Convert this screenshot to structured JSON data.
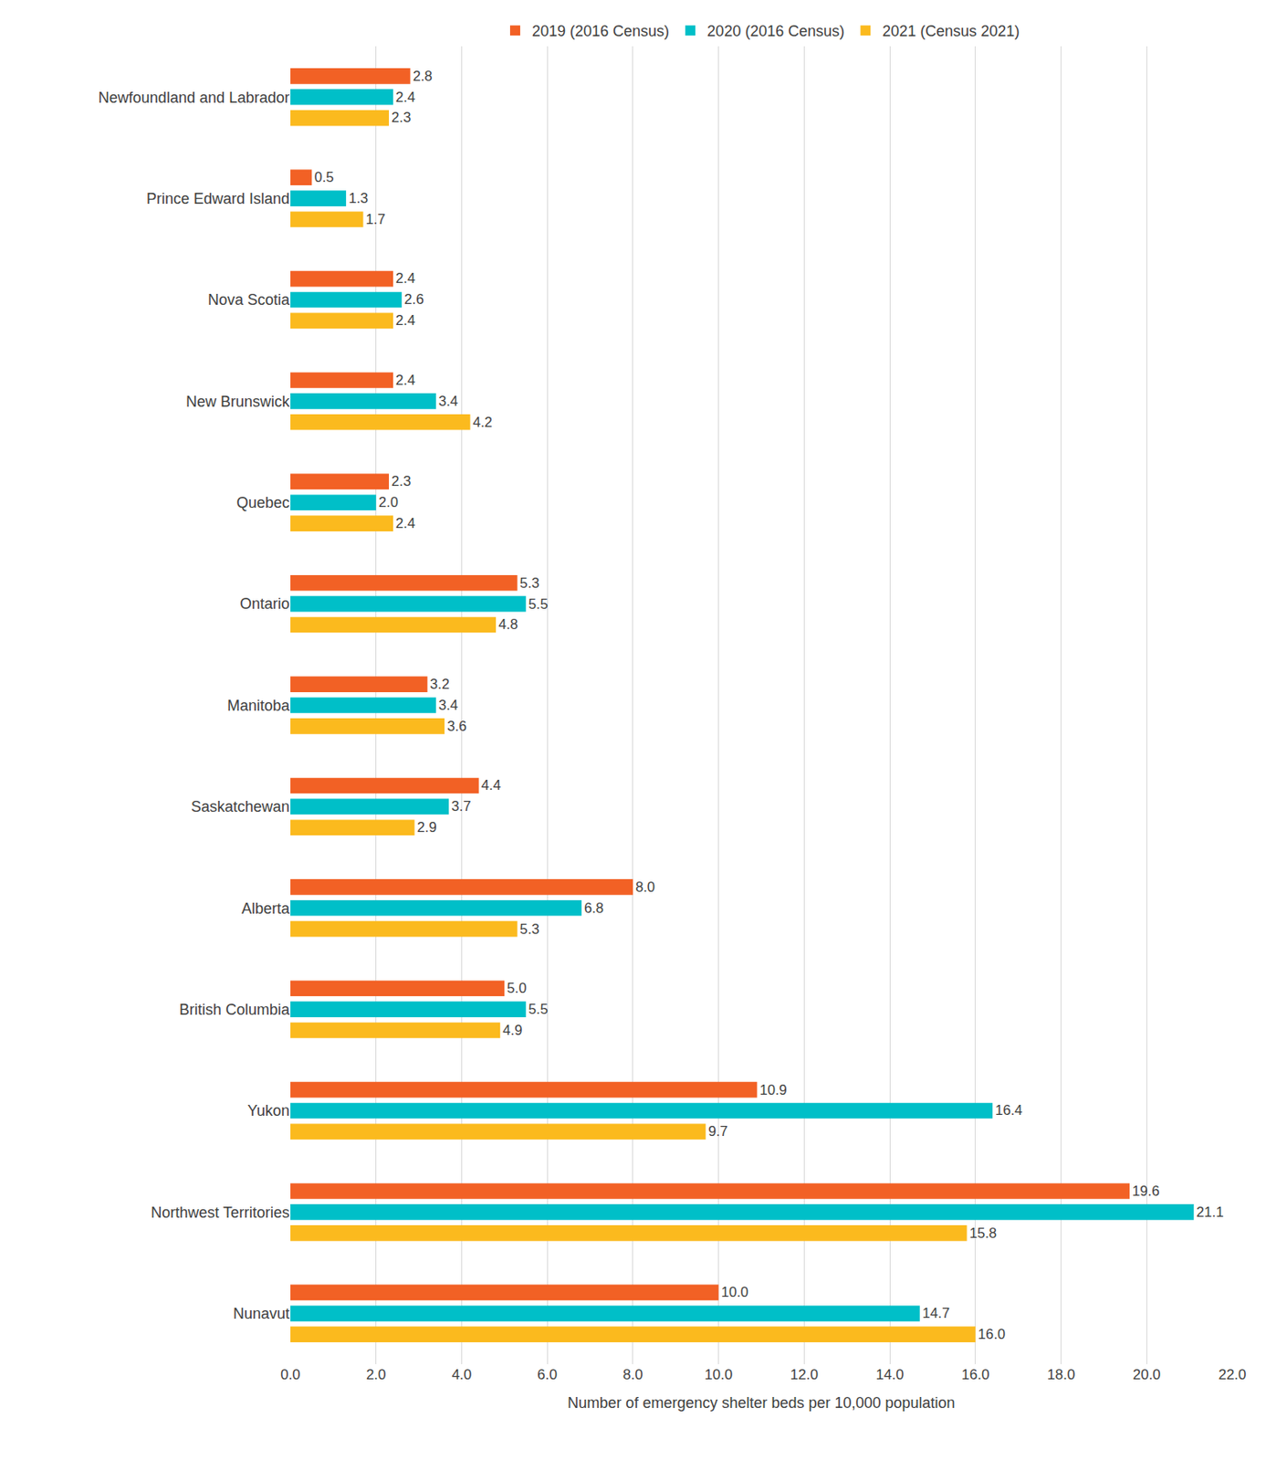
{
  "chart_data": {
    "type": "bar",
    "orientation": "horizontal",
    "x_label": "Number of emergency shelter beds per 10,000 population",
    "categories": [
      "Newfoundland and Labrador",
      "Prince Edward Island",
      "Nova Scotia",
      "New Brunswick",
      "Quebec",
      "Ontario",
      "Manitoba",
      "Saskatchewan",
      "Alberta",
      "British Columbia",
      "Yukon",
      "Northwest Territories",
      "Nunavut"
    ],
    "series": [
      {
        "name": "2019 (2016 Census)",
        "color": "#F26125",
        "values": [
          2.8,
          0.5,
          2.4,
          2.4,
          2.3,
          5.3,
          3.2,
          4.4,
          8.0,
          5.0,
          10.9,
          19.6,
          10.0
        ],
        "value_labels": [
          "2.8",
          "0.5",
          "2.4",
          "2.4",
          "2.3",
          "5.3",
          "3.2",
          "4.4",
          "8.0",
          "5.0",
          "10.9",
          "19.6",
          "10.0"
        ]
      },
      {
        "name": "2020 (2016 Census)",
        "color": "#00BFC8",
        "values": [
          2.4,
          1.3,
          2.6,
          3.4,
          2.0,
          5.5,
          3.4,
          3.7,
          6.8,
          5.5,
          16.4,
          21.1,
          14.7
        ],
        "value_labels": [
          "2.4",
          "1.3",
          "2.6",
          "3.4",
          "2.0",
          "5.5",
          "3.4",
          "3.7",
          "6.8",
          "5.5",
          "16.4",
          "21.1",
          "14.7"
        ]
      },
      {
        "name": "2021 (Census 2021)",
        "color": "#FBBA1E",
        "values": [
          2.3,
          1.7,
          2.4,
          4.2,
          2.4,
          4.8,
          3.6,
          2.9,
          5.3,
          4.9,
          9.7,
          15.8,
          16.0
        ],
        "value_labels": [
          "2.3",
          "1.7",
          "2.4",
          "4.2",
          "2.4",
          "4.8",
          "3.6",
          "2.9",
          "5.3",
          "4.9",
          "9.7",
          "15.8",
          "16.0"
        ]
      }
    ],
    "xlim": [
      0,
      22
    ],
    "xticks": [
      {
        "value": 0,
        "label": "0.0"
      },
      {
        "value": 2,
        "label": "2.0"
      },
      {
        "value": 4,
        "label": "4.0"
      },
      {
        "value": 6,
        "label": "6.0"
      },
      {
        "value": 8,
        "label": "8.0"
      },
      {
        "value": 10,
        "label": "10.0"
      },
      {
        "value": 12,
        "label": "12.0"
      },
      {
        "value": 14,
        "label": "14.0"
      },
      {
        "value": 16,
        "label": "16.0"
      },
      {
        "value": 18,
        "label": "18.0"
      },
      {
        "value": 20,
        "label": "20.0"
      },
      {
        "value": 22,
        "label": "22.0"
      }
    ],
    "grid": true,
    "data_labels": true,
    "legend": "top"
  }
}
